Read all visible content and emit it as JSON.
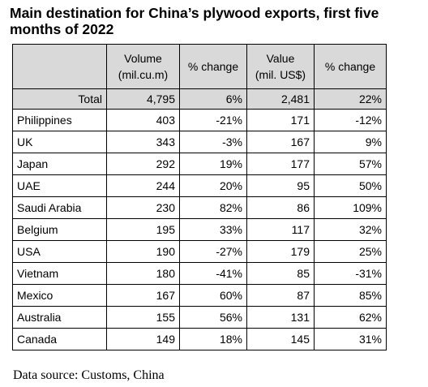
{
  "title": "Main destination for China’s plywood exports, first five months of 2022",
  "headers": {
    "col0": "",
    "volume": "Volume",
    "volume_unit": "(mil.cu.m)",
    "volume_change": "% change",
    "value": "Value",
    "value_unit": "(mil. US$)",
    "value_change": "% change"
  },
  "total": {
    "label": "Total",
    "volume": "4,795",
    "volume_change": "6%",
    "value": "2,481",
    "value_change": "22%"
  },
  "rows": [
    {
      "country": "Philippines",
      "volume": "403",
      "volume_change": "-21%",
      "value": "171",
      "value_change": "-12%"
    },
    {
      "country": "UK",
      "volume": "343",
      "volume_change": "-3%",
      "value": "167",
      "value_change": "9%"
    },
    {
      "country": "Japan",
      "volume": "292",
      "volume_change": "19%",
      "value": "177",
      "value_change": "57%"
    },
    {
      "country": "UAE",
      "volume": "244",
      "volume_change": "20%",
      "value": "95",
      "value_change": "50%"
    },
    {
      "country": "Saudi Arabia",
      "volume": "230",
      "volume_change": "82%",
      "value": "86",
      "value_change": "109%"
    },
    {
      "country": "Belgium",
      "volume": "195",
      "volume_change": "33%",
      "value": "117",
      "value_change": "32%"
    },
    {
      "country": "USA",
      "volume": "190",
      "volume_change": "-27%",
      "value": "179",
      "value_change": "25%"
    },
    {
      "country": "Vietnam",
      "volume": "180",
      "volume_change": "-41%",
      "value": "85",
      "value_change": "-31%"
    },
    {
      "country": "Mexico",
      "volume": "167",
      "volume_change": "60%",
      "value": "87",
      "value_change": "85%"
    },
    {
      "country": "Australia",
      "volume": "155",
      "volume_change": "56%",
      "value": "131",
      "value_change": "62%"
    },
    {
      "country": "Canada",
      "volume": "149",
      "volume_change": "18%",
      "value": "145",
      "value_change": "31%"
    }
  ],
  "source": "Data source: Customs, China",
  "colors": {
    "header_bg": "#d9d9d9",
    "border": "#000000"
  }
}
